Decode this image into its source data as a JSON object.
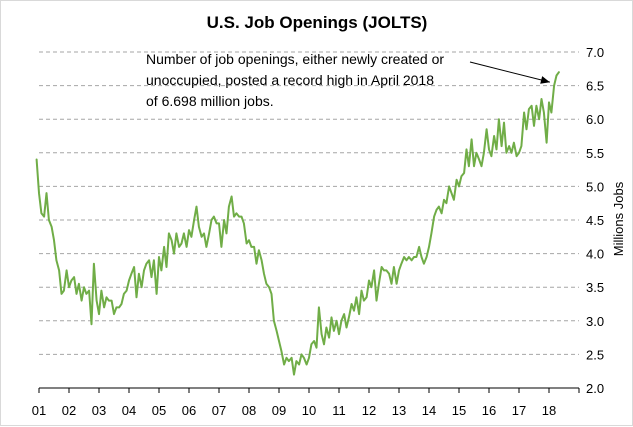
{
  "chart_data": {
    "type": "line",
    "title": "U.S. Job Openings (JOLTS)",
    "xlabel": "",
    "ylabel": "Millions Jobs",
    "x_tick_labels": [
      "01",
      "02",
      "03",
      "04",
      "05",
      "06",
      "07",
      "08",
      "09",
      "10",
      "11",
      "12",
      "13",
      "14",
      "15",
      "16",
      "17",
      "18"
    ],
    "y_ticks": [
      "2.0",
      "2.5",
      "3.0",
      "3.5",
      "4.0",
      "4.5",
      "5.0",
      "5.5",
      "6.0",
      "6.5",
      "7.0"
    ],
    "ylim": [
      2.0,
      7.0
    ],
    "xlim": [
      2001.0,
      2019.0
    ],
    "y_axis_side": "right",
    "grid": "horizontal dashed",
    "annotation": {
      "lines": [
        "Number of job openings, either newly created or",
        "unoccupied, posted a record high in April 2018",
        "of 6.698 million jobs."
      ]
    },
    "colors": {
      "series": "#70ad47",
      "grid": "#a6a6a6",
      "axis": "#000000"
    },
    "series": [
      {
        "x": [
          2000.92,
          2001.0,
          2001.08,
          2001.17,
          2001.25,
          2001.33,
          2001.42,
          2001.5,
          2001.58,
          2001.67,
          2001.75,
          2001.83,
          2001.92,
          2002.0,
          2002.08,
          2002.17,
          2002.25,
          2002.33,
          2002.42,
          2002.5,
          2002.58,
          2002.67,
          2002.75,
          2002.83,
          2002.92,
          2003.0,
          2003.08,
          2003.17,
          2003.25,
          2003.33,
          2003.42,
          2003.5,
          2003.58,
          2003.67,
          2003.75,
          2003.83,
          2003.92,
          2004.0,
          2004.08,
          2004.17,
          2004.25,
          2004.33,
          2004.42,
          2004.5,
          2004.58,
          2004.67,
          2004.75,
          2004.83,
          2004.92,
          2005.0,
          2005.08,
          2005.17,
          2005.25,
          2005.33,
          2005.42,
          2005.5,
          2005.58,
          2005.67,
          2005.75,
          2005.83,
          2005.92,
          2006.0,
          2006.08,
          2006.17,
          2006.25,
          2006.33,
          2006.42,
          2006.5,
          2006.58,
          2006.67,
          2006.75,
          2006.83,
          2006.92,
          2007.0,
          2007.08,
          2007.17,
          2007.25,
          2007.33,
          2007.42,
          2007.5,
          2007.58,
          2007.67,
          2007.75,
          2007.83,
          2007.92,
          2008.0,
          2008.08,
          2008.17,
          2008.25,
          2008.33,
          2008.42,
          2008.5,
          2008.58,
          2008.67,
          2008.75,
          2008.83,
          2008.92,
          2009.0,
          2009.08,
          2009.17,
          2009.25,
          2009.33,
          2009.42,
          2009.5,
          2009.58,
          2009.67,
          2009.75,
          2009.83,
          2009.92,
          2010.0,
          2010.08,
          2010.17,
          2010.25,
          2010.33,
          2010.42,
          2010.5,
          2010.58,
          2010.67,
          2010.75,
          2010.83,
          2010.92,
          2011.0,
          2011.08,
          2011.17,
          2011.25,
          2011.33,
          2011.42,
          2011.5,
          2011.58,
          2011.67,
          2011.75,
          2011.83,
          2011.92,
          2012.0,
          2012.08,
          2012.17,
          2012.25,
          2012.33,
          2012.42,
          2012.5,
          2012.58,
          2012.67,
          2012.75,
          2012.83,
          2012.92,
          2013.0,
          2013.08,
          2013.17,
          2013.25,
          2013.33,
          2013.42,
          2013.5,
          2013.58,
          2013.67,
          2013.75,
          2013.83,
          2013.92,
          2014.0,
          2014.08,
          2014.17,
          2014.25,
          2014.33,
          2014.42,
          2014.5,
          2014.58,
          2014.67,
          2014.75,
          2014.83,
          2014.92,
          2015.0,
          2015.08,
          2015.17,
          2015.25,
          2015.33,
          2015.42,
          2015.5,
          2015.58,
          2015.67,
          2015.75,
          2015.83,
          2015.92,
          2016.0,
          2016.08,
          2016.17,
          2016.25,
          2016.33,
          2016.42,
          2016.5,
          2016.58,
          2016.67,
          2016.75,
          2016.83,
          2016.92,
          2017.0,
          2017.08,
          2017.17,
          2017.25,
          2017.33,
          2017.42,
          2017.5,
          2017.58,
          2017.67,
          2017.75,
          2017.83,
          2017.92,
          2018.0,
          2018.08,
          2018.17,
          2018.25,
          2018.33
        ],
        "values": [
          5.4,
          4.9,
          4.6,
          4.55,
          4.9,
          4.5,
          4.4,
          4.2,
          3.9,
          3.75,
          3.4,
          3.45,
          3.75,
          3.5,
          3.6,
          3.65,
          3.4,
          3.55,
          3.3,
          3.5,
          3.4,
          3.45,
          2.95,
          3.85,
          3.3,
          3.1,
          3.45,
          3.2,
          3.35,
          3.3,
          3.3,
          3.1,
          3.2,
          3.2,
          3.25,
          3.4,
          3.45,
          3.6,
          3.7,
          3.8,
          3.35,
          3.7,
          3.5,
          3.75,
          3.85,
          3.9,
          3.65,
          3.9,
          3.4,
          3.95,
          3.75,
          4.1,
          3.8,
          4.3,
          4.2,
          4.0,
          4.3,
          4.1,
          4.15,
          4.3,
          4.1,
          4.35,
          4.25,
          4.5,
          4.7,
          4.4,
          4.25,
          4.3,
          4.1,
          4.3,
          4.5,
          4.55,
          4.45,
          4.45,
          4.1,
          4.5,
          4.3,
          4.7,
          4.85,
          4.55,
          4.6,
          4.55,
          4.55,
          4.45,
          4.15,
          4.2,
          4.1,
          4.1,
          3.85,
          4.05,
          3.9,
          3.7,
          3.55,
          3.5,
          3.4,
          3.0,
          2.85,
          2.7,
          2.55,
          2.35,
          2.45,
          2.4,
          2.45,
          2.2,
          2.4,
          2.35,
          2.5,
          2.45,
          2.35,
          2.45,
          2.65,
          2.7,
          2.6,
          3.2,
          2.8,
          2.65,
          2.9,
          2.75,
          3.05,
          2.85,
          3.0,
          2.8,
          3.0,
          3.1,
          2.9,
          3.05,
          3.25,
          3.15,
          3.35,
          3.1,
          3.45,
          3.3,
          3.35,
          3.6,
          3.5,
          3.75,
          3.3,
          3.55,
          3.8,
          3.75,
          3.75,
          3.7,
          3.55,
          3.8,
          3.55,
          3.75,
          3.85,
          3.95,
          3.9,
          3.95,
          3.9,
          3.95,
          3.95,
          4.1,
          3.95,
          3.85,
          3.95,
          4.1,
          4.3,
          4.55,
          4.65,
          4.7,
          4.6,
          4.8,
          4.75,
          5.0,
          4.9,
          4.8,
          5.1,
          5.0,
          5.15,
          5.2,
          5.55,
          5.3,
          5.7,
          5.3,
          5.5,
          5.4,
          5.3,
          5.5,
          5.85,
          5.55,
          5.45,
          5.75,
          5.55,
          6.0,
          5.6,
          5.95,
          5.5,
          5.6,
          5.5,
          5.65,
          5.45,
          5.5,
          5.6,
          6.1,
          5.85,
          6.15,
          6.2,
          5.9,
          6.2,
          6.0,
          6.3,
          6.1,
          5.65,
          6.25,
          6.1,
          6.5,
          6.65,
          6.7
        ]
      }
    ]
  }
}
